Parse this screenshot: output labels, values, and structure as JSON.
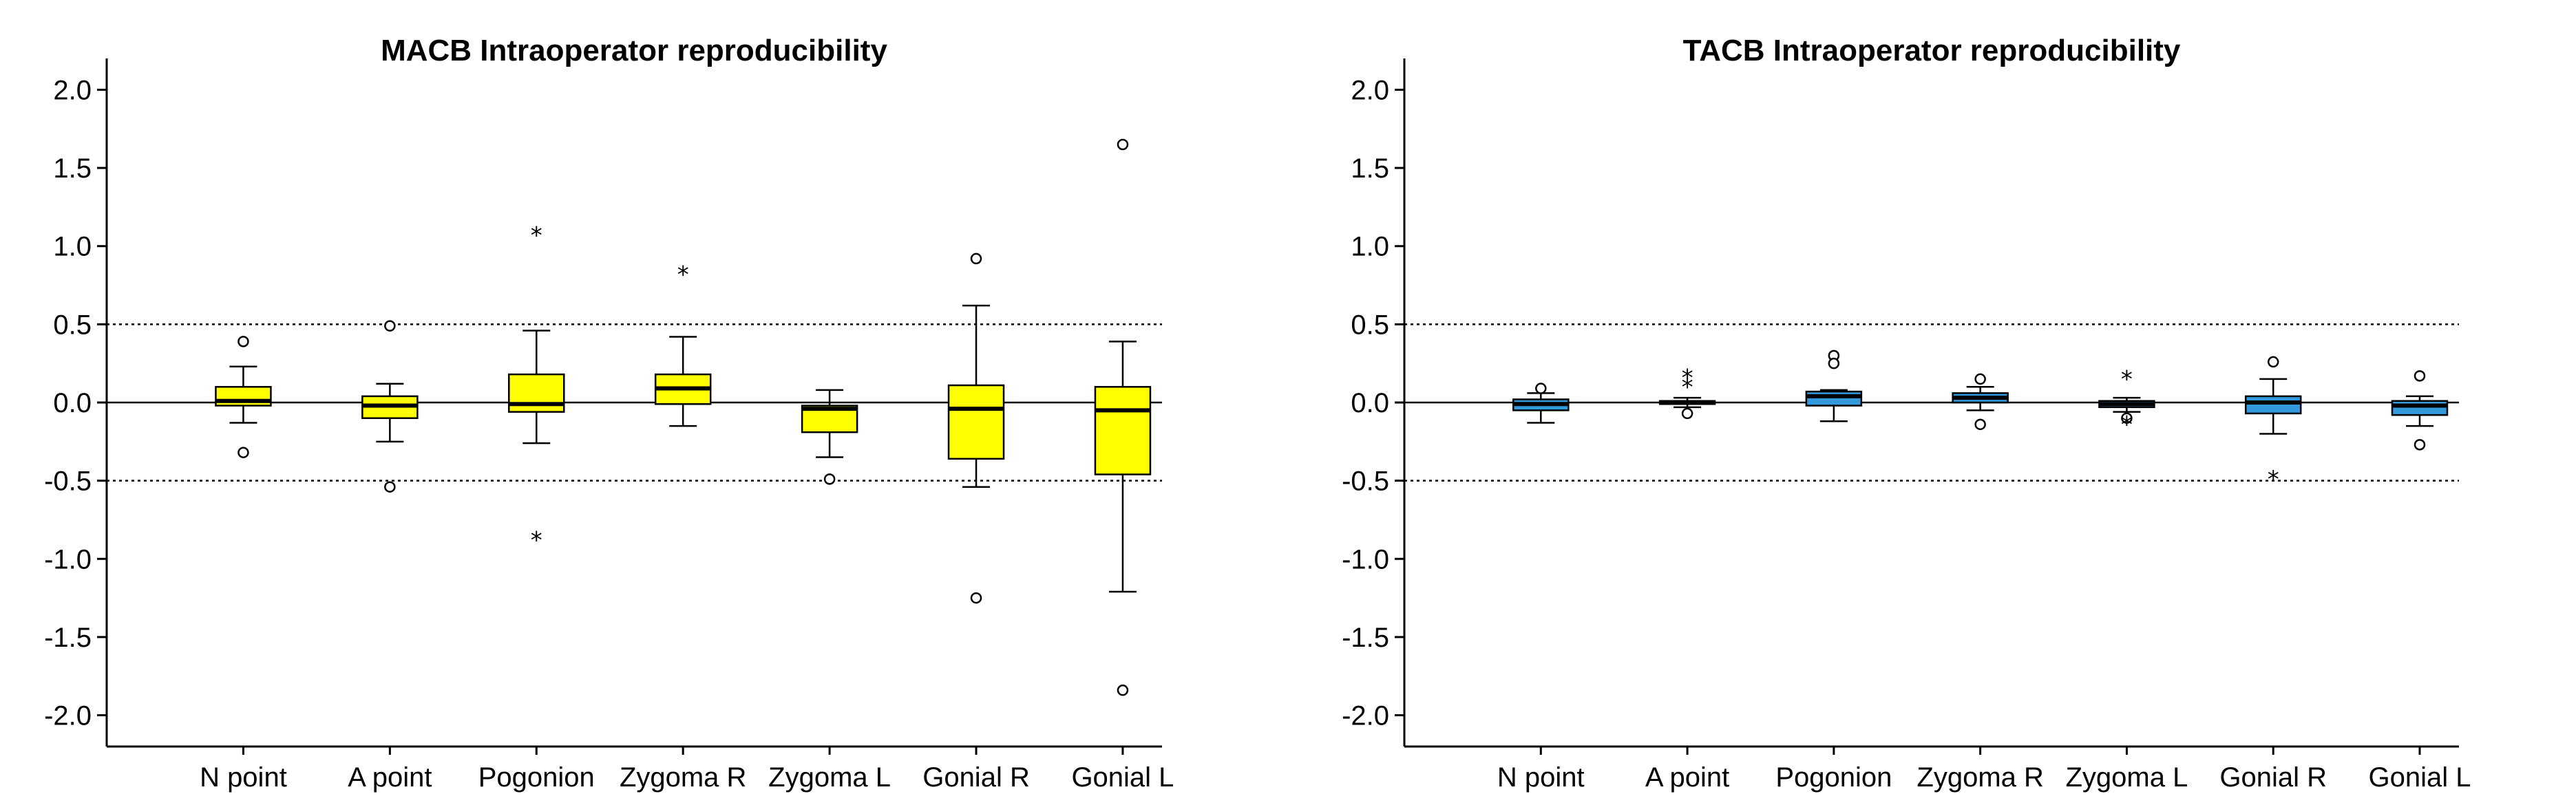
{
  "chart_data": [
    {
      "type": "boxplot",
      "title": "MACB Intraoperator reproducibility",
      "xlabel": "",
      "ylabel": "",
      "ylim": [
        -2.2,
        2.2
      ],
      "yticks": [
        2.0,
        1.5,
        1.0,
        0.5,
        0.0,
        -0.5,
        -1.0,
        -1.5,
        -2.0
      ],
      "ytick_labels": [
        "2.0",
        "1.5",
        "1.0",
        "0.5",
        "0.0",
        "-0.5",
        "-1.0",
        "-1.5",
        "-2.0"
      ],
      "reference_lines": [
        {
          "y": 0.5,
          "style": "dotted"
        },
        {
          "y": 0.0,
          "style": "solid"
        },
        {
          "y": -0.5,
          "style": "dotted"
        }
      ],
      "box_color": "#ffff00",
      "categories": [
        "N point",
        "A point",
        "Pogonion",
        "Zygoma R",
        "Zygoma L",
        "Gonial R",
        "Gonial L"
      ],
      "boxes": [
        {
          "label": "N point",
          "whisker_low": -0.13,
          "q1": -0.02,
          "median": 0.01,
          "q3": 0.1,
          "whisker_high": 0.23,
          "outliers": [
            {
              "v": 0.39,
              "m": "o"
            },
            {
              "v": -0.32,
              "m": "o"
            }
          ]
        },
        {
          "label": "A point",
          "whisker_low": -0.25,
          "q1": -0.1,
          "median": -0.02,
          "q3": 0.04,
          "whisker_high": 0.12,
          "outliers": [
            {
              "v": 0.49,
              "m": "o"
            },
            {
              "v": -0.54,
              "m": "o"
            }
          ]
        },
        {
          "label": "Pogonion",
          "whisker_low": -0.26,
          "q1": -0.06,
          "median": -0.01,
          "q3": 0.18,
          "whisker_high": 0.46,
          "outliers": [
            {
              "v": 1.08,
              "m": "*"
            },
            {
              "v": -0.87,
              "m": "*"
            }
          ]
        },
        {
          "label": "Zygoma R",
          "whisker_low": -0.15,
          "q1": -0.01,
          "median": 0.09,
          "q3": 0.18,
          "whisker_high": 0.42,
          "outliers": [
            {
              "v": 0.83,
              "m": "*"
            }
          ]
        },
        {
          "label": "Zygoma L",
          "whisker_low": -0.35,
          "q1": -0.19,
          "median": -0.04,
          "q3": -0.02,
          "whisker_high": 0.08,
          "outliers": [
            {
              "v": -0.49,
              "m": "o"
            }
          ]
        },
        {
          "label": "Gonial R",
          "whisker_low": -0.54,
          "q1": -0.36,
          "median": -0.04,
          "q3": 0.11,
          "whisker_high": 0.62,
          "outliers": [
            {
              "v": 0.92,
              "m": "o"
            },
            {
              "v": -1.25,
              "m": "o"
            }
          ]
        },
        {
          "label": "Gonial L",
          "whisker_low": -1.21,
          "q1": -0.46,
          "median": -0.05,
          "q3": 0.1,
          "whisker_high": 0.39,
          "outliers": [
            {
              "v": 1.65,
              "m": "o"
            },
            {
              "v": -1.84,
              "m": "o"
            }
          ]
        }
      ]
    },
    {
      "type": "boxplot",
      "title": "TACB Intraoperator reproducibility",
      "xlabel": "",
      "ylabel": "",
      "ylim": [
        -2.2,
        2.2
      ],
      "yticks": [
        2.0,
        1.5,
        1.0,
        0.5,
        0.0,
        -0.5,
        -1.0,
        -1.5,
        -2.0
      ],
      "ytick_labels": [
        "2.0",
        "1.5",
        "1.0",
        "0.5",
        "0.0",
        "-0.5",
        "-1.0",
        "-1.5",
        "-2.0"
      ],
      "reference_lines": [
        {
          "y": 0.5,
          "style": "dotted"
        },
        {
          "y": 0.0,
          "style": "solid"
        },
        {
          "y": -0.5,
          "style": "dotted"
        }
      ],
      "box_color": "#3399dd",
      "categories": [
        "N point",
        "A point",
        "Pogonion",
        "Zygoma R",
        "Zygoma L",
        "Gonial R",
        "Gonial L"
      ],
      "boxes": [
        {
          "label": "N point",
          "whisker_low": -0.13,
          "q1": -0.05,
          "median": -0.01,
          "q3": 0.02,
          "whisker_high": 0.06,
          "outliers": [
            {
              "v": 0.09,
              "m": "o"
            }
          ]
        },
        {
          "label": "A point",
          "whisker_low": -0.03,
          "q1": -0.01,
          "median": 0.0,
          "q3": 0.01,
          "whisker_high": 0.03,
          "outliers": [
            {
              "v": 0.17,
              "m": "*"
            },
            {
              "v": 0.11,
              "m": "*"
            },
            {
              "v": -0.07,
              "m": "o"
            }
          ]
        },
        {
          "label": "Pogonion",
          "whisker_low": -0.12,
          "q1": -0.02,
          "median": 0.04,
          "q3": 0.07,
          "whisker_high": 0.08,
          "outliers": [
            {
              "v": 0.3,
              "m": "o"
            },
            {
              "v": 0.25,
              "m": "o"
            }
          ]
        },
        {
          "label": "Zygoma R",
          "whisker_low": -0.05,
          "q1": 0.0,
          "median": 0.03,
          "q3": 0.06,
          "whisker_high": 0.1,
          "outliers": [
            {
              "v": 0.15,
              "m": "o"
            },
            {
              "v": -0.14,
              "m": "o"
            }
          ]
        },
        {
          "label": "Zygoma L",
          "whisker_low": -0.06,
          "q1": -0.03,
          "median": -0.01,
          "q3": 0.01,
          "whisker_high": 0.03,
          "outliers": [
            {
              "v": 0.16,
              "m": "*"
            },
            {
              "v": -0.1,
              "m": "o"
            },
            {
              "v": -0.13,
              "m": "*"
            }
          ]
        },
        {
          "label": "Gonial R",
          "whisker_low": -0.2,
          "q1": -0.07,
          "median": 0.0,
          "q3": 0.04,
          "whisker_high": 0.15,
          "outliers": [
            {
              "v": 0.26,
              "m": "o"
            },
            {
              "v": -0.48,
              "m": "*"
            }
          ]
        },
        {
          "label": "Gonial L",
          "whisker_low": -0.15,
          "q1": -0.08,
          "median": -0.02,
          "q3": 0.01,
          "whisker_high": 0.04,
          "outliers": [
            {
              "v": 0.17,
              "m": "o"
            },
            {
              "v": -0.27,
              "m": "o"
            }
          ]
        }
      ]
    }
  ]
}
